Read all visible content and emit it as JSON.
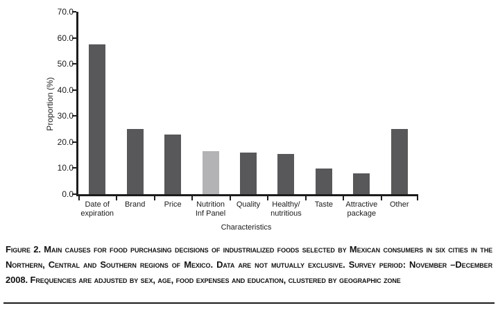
{
  "figure": {
    "caption": "Figure 2. Main causes for food purchasing decisions of industrialized foods selected by Mexican consumers in six cities in the Northern, Central and Southern regions of Mexico. Data are not mutually exclusive. Survey period: November –December 2008. Frequencies are adjusted by sex, age, food expenses and education, clustered by geographic zone"
  },
  "chart_data": {
    "type": "bar",
    "title": "",
    "xlabel": "Characteristics",
    "ylabel": "Proportion (%)",
    "ylim": [
      0,
      70
    ],
    "yticks": [
      "70.0",
      "60.0",
      "50.0",
      "40.0",
      "30.0",
      "20.0",
      "10.0",
      "0.0"
    ],
    "categories": [
      "Date of\nexpiration",
      "Brand",
      "Price",
      "Nutrition\nInf Panel",
      "Quality",
      "Healthy/\nnutritious",
      "Taste",
      "Attractive\npackage",
      "Other"
    ],
    "values": [
      57.5,
      25.0,
      23.0,
      16.5,
      15.9,
      15.5,
      9.9,
      7.9,
      24.9
    ],
    "grid": false,
    "legend_position": "none",
    "colors": {
      "bar": "#58585a",
      "highlight": "#b3b3b5"
    },
    "highlight_index": 3
  }
}
